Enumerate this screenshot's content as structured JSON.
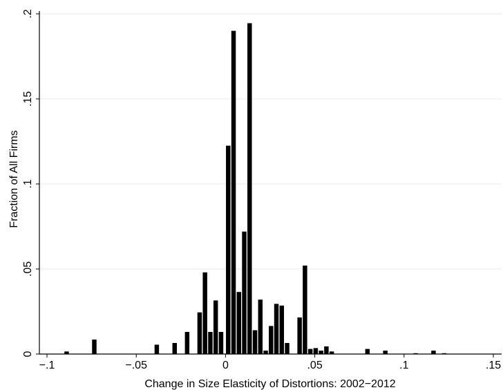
{
  "chart_data": {
    "type": "bar",
    "title": "",
    "xlabel": "Change in Size Elasticity of Distortions: 2002−2012",
    "ylabel": "Fraction of All Firms",
    "xlim": [
      -0.1,
      0.15
    ],
    "ylim": [
      0,
      0.2
    ],
    "grid": "horizontal",
    "bin_width": 0.0025,
    "x_ticks": [
      {
        "value": -0.1,
        "label": "−.1"
      },
      {
        "value": -0.05,
        "label": "−.05"
      },
      {
        "value": 0,
        "label": "0"
      },
      {
        "value": 0.05,
        "label": ".05"
      },
      {
        "value": 0.1,
        "label": ".1"
      },
      {
        "value": 0.15,
        "label": ".15"
      }
    ],
    "y_ticks": [
      {
        "value": 0,
        "label": "0"
      },
      {
        "value": 0.05,
        "label": ".05"
      },
      {
        "value": 0.1,
        "label": ".1"
      },
      {
        "value": 0.15,
        "label": ".15"
      },
      {
        "value": 0.2,
        "label": ".2"
      }
    ],
    "colors": {
      "bar": "#000000",
      "grid": "#e8e8e8",
      "axis": "#000000"
    },
    "bars": [
      {
        "x": -0.089,
        "y": 0.0015
      },
      {
        "x": -0.0735,
        "y": 0.0085
      },
      {
        "x": -0.0385,
        "y": 0.0055
      },
      {
        "x": -0.0285,
        "y": 0.0065
      },
      {
        "x": -0.0215,
        "y": 0.013
      },
      {
        "x": -0.0145,
        "y": 0.0245
      },
      {
        "x": -0.0115,
        "y": 0.048
      },
      {
        "x": -0.0085,
        "y": 0.013
      },
      {
        "x": -0.0055,
        "y": 0.0315
      },
      {
        "x": -0.0025,
        "y": 0.013
      },
      {
        "x": 0.0015,
        "y": 0.1225
      },
      {
        "x": 0.0045,
        "y": 0.19
      },
      {
        "x": 0.0075,
        "y": 0.0365
      },
      {
        "x": 0.0105,
        "y": 0.072
      },
      {
        "x": 0.0135,
        "y": 0.1945
      },
      {
        "x": 0.0165,
        "y": 0.014
      },
      {
        "x": 0.0195,
        "y": 0.032
      },
      {
        "x": 0.0225,
        "y": 0.002
      },
      {
        "x": 0.0255,
        "y": 0.0165
      },
      {
        "x": 0.0285,
        "y": 0.0295
      },
      {
        "x": 0.0315,
        "y": 0.0285
      },
      {
        "x": 0.0345,
        "y": 0.0065
      },
      {
        "x": 0.0415,
        "y": 0.0215
      },
      {
        "x": 0.0445,
        "y": 0.052
      },
      {
        "x": 0.0475,
        "y": 0.003
      },
      {
        "x": 0.0505,
        "y": 0.0035
      },
      {
        "x": 0.0535,
        "y": 0.002
      },
      {
        "x": 0.0565,
        "y": 0.0045
      },
      {
        "x": 0.0595,
        "y": 0.0015
      },
      {
        "x": 0.0795,
        "y": 0.003
      },
      {
        "x": 0.0895,
        "y": 0.002
      },
      {
        "x": 0.1065,
        "y": 0.0005
      },
      {
        "x": 0.1165,
        "y": 0.002
      },
      {
        "x": 0.1225,
        "y": 0.0005
      }
    ]
  }
}
